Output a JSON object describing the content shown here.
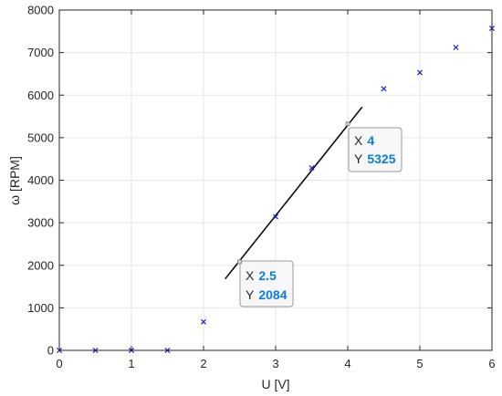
{
  "chart_data": {
    "type": "scatter",
    "title": "",
    "xlabel": "U [V]",
    "ylabel": "ω [RPM]",
    "xlim": [
      0,
      6
    ],
    "ylim": [
      0,
      8000
    ],
    "xticks": [
      "0",
      "1",
      "2",
      "3",
      "4",
      "5",
      "6"
    ],
    "yticks": [
      "0",
      "1000",
      "2000",
      "3000",
      "4000",
      "5000",
      "6000",
      "7000",
      "8000"
    ],
    "grid": true,
    "marker": "x",
    "colors": {
      "markers": "#1f1fdc",
      "fit_line": "#000000",
      "datatip_value": "#0b7fe0",
      "grid": "#e6e6e6"
    },
    "series": [
      {
        "x": [
          0,
          0.5,
          1,
          1.5,
          2,
          3,
          3.5,
          4.5,
          5,
          5.5,
          6
        ],
        "y": [
          0,
          0,
          0,
          0,
          670,
          3140,
          4290,
          6150,
          6530,
          7120,
          7570
        ]
      }
    ],
    "fit_line": {
      "x": [
        2.3,
        4.2
      ],
      "y": [
        1680,
        5720
      ]
    },
    "datatips": [
      {
        "x_label": "X",
        "x_value": "2.5",
        "y_label": "Y",
        "y_value": "2084",
        "x": 2.5,
        "y": 2084
      },
      {
        "x_label": "X",
        "x_value": "4",
        "y_label": "Y",
        "y_value": "5325",
        "x": 4,
        "y": 5325
      }
    ]
  }
}
